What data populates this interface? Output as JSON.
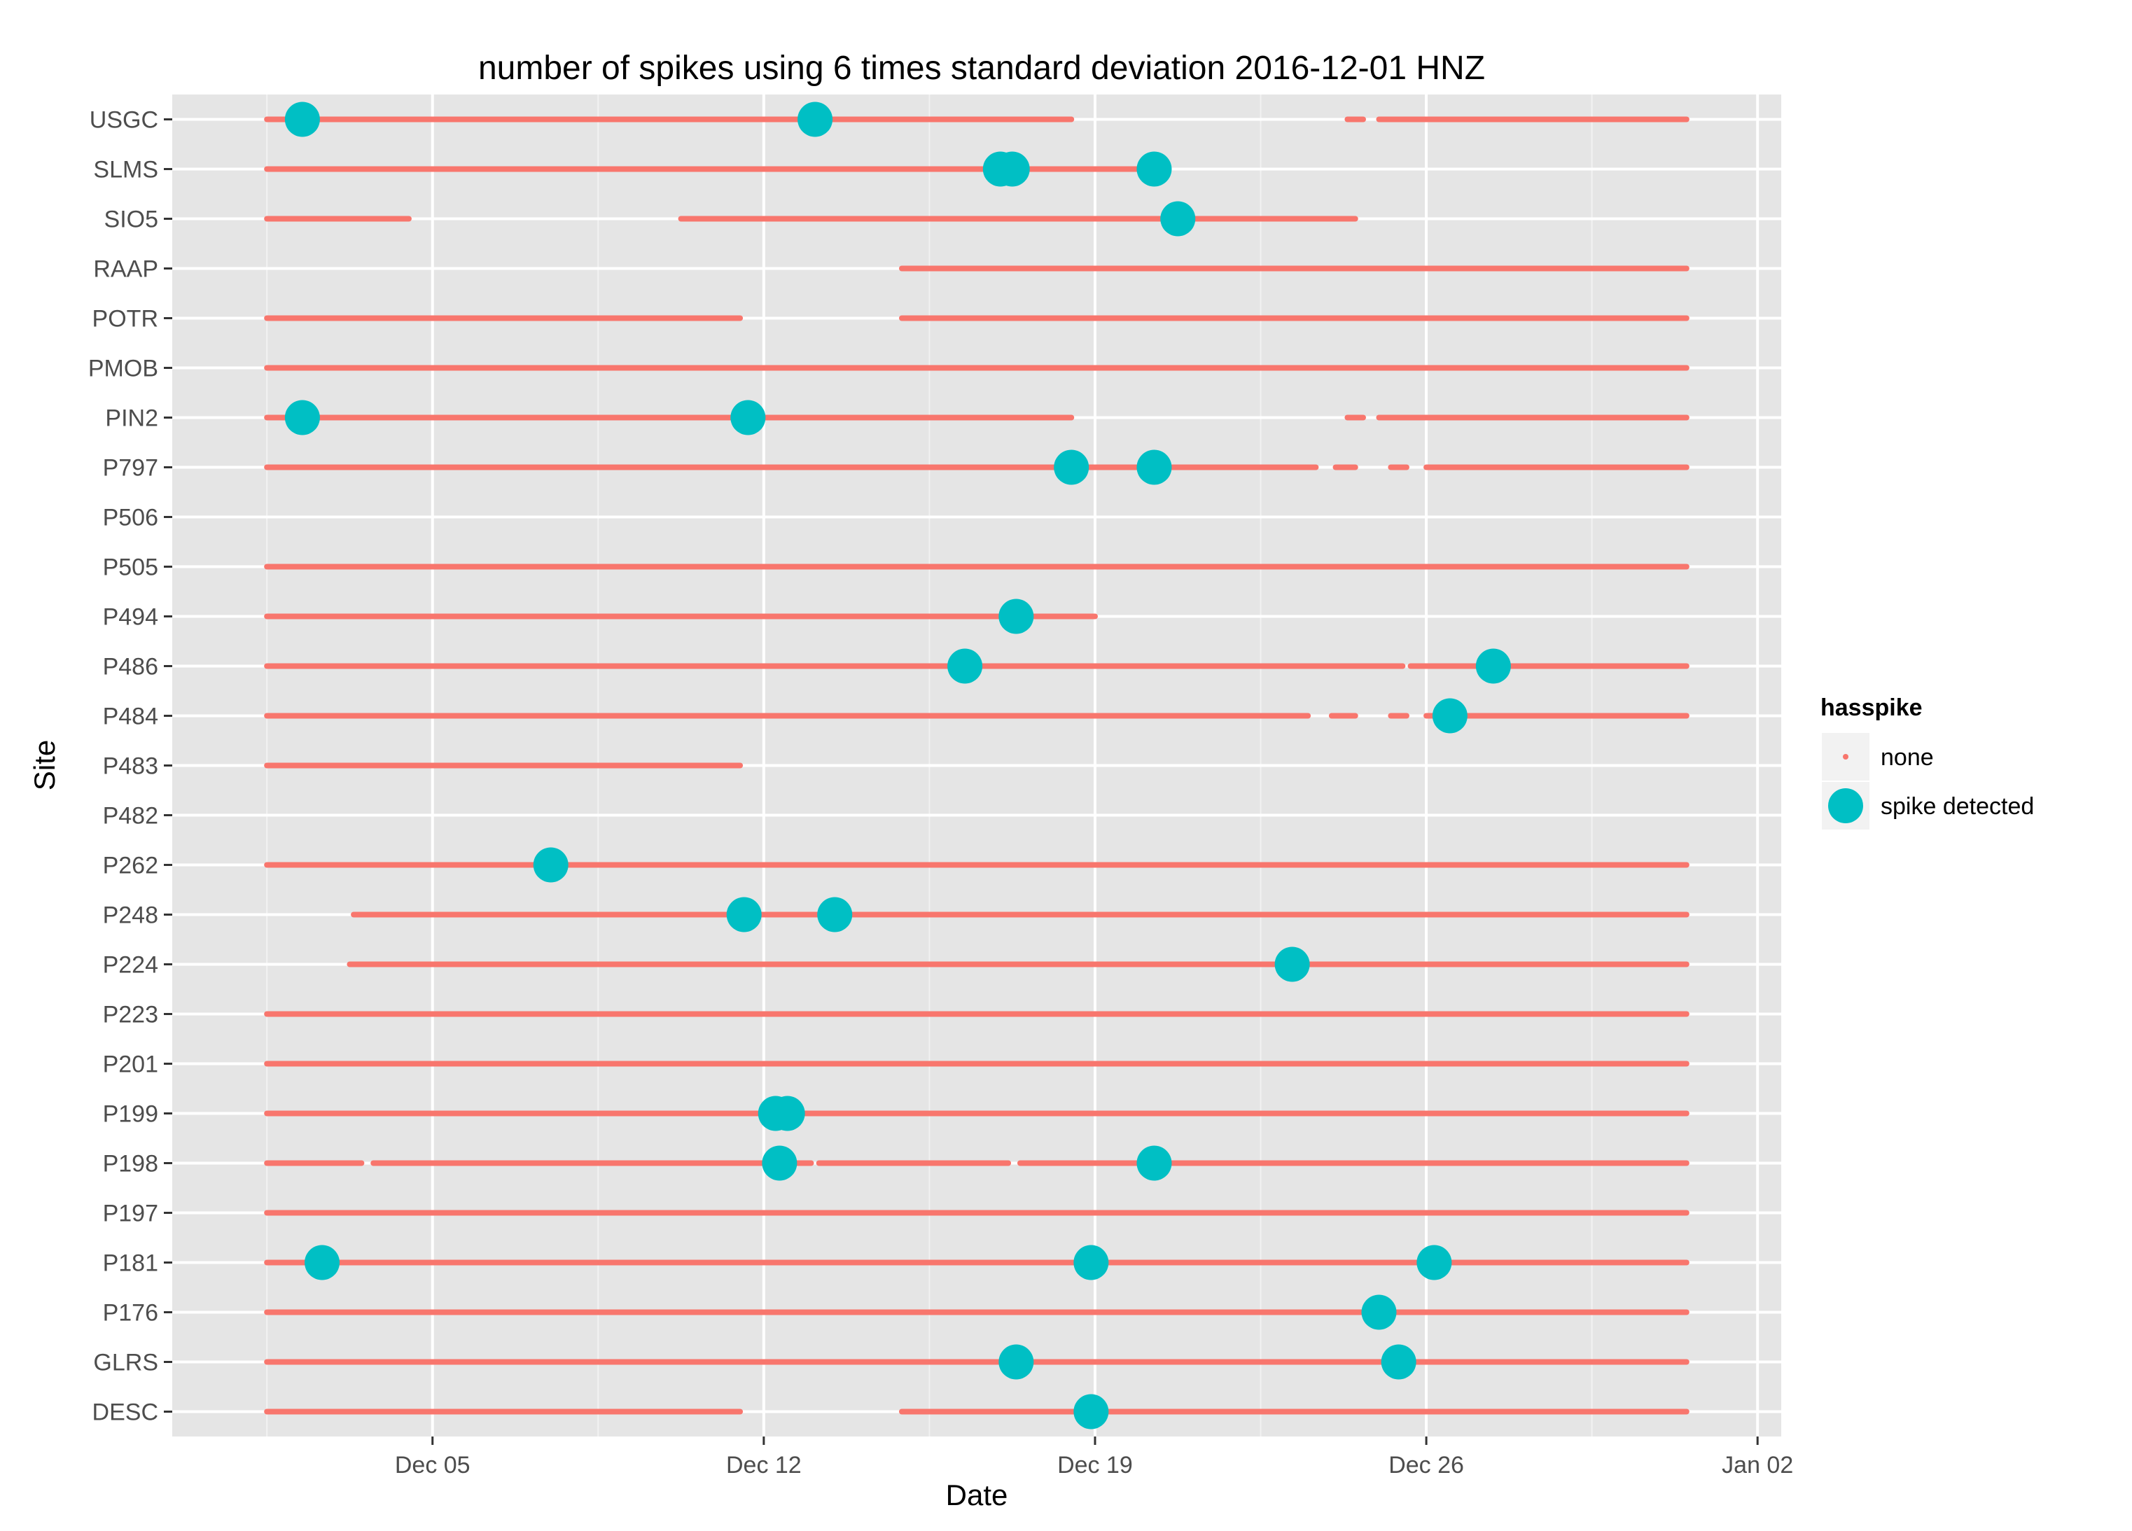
{
  "chart_data": {
    "type": "scatter",
    "title": "number of spikes using  6 times standard deviation 2016-12-01 HNZ",
    "xlabel": "Date",
    "ylabel": "Site",
    "xlim": [
      "2016-11-29T12:00",
      "2017-01-02T12:00"
    ],
    "x_ticks": [
      {
        "date": "2016-12-05",
        "label": "Dec 05"
      },
      {
        "date": "2016-12-12",
        "label": "Dec 12"
      },
      {
        "date": "2016-12-19",
        "label": "Dec 19"
      },
      {
        "date": "2016-12-26",
        "label": "Dec 26"
      },
      {
        "date": "2017-01-02",
        "label": "Jan 02"
      }
    ],
    "sites": [
      "USGC",
      "SLMS",
      "SIO5",
      "RAAP",
      "POTR",
      "PMOB",
      "PIN2",
      "P797",
      "P506",
      "P505",
      "P494",
      "P486",
      "P484",
      "P483",
      "P482",
      "P262",
      "P248",
      "P224",
      "P223",
      "P201",
      "P199",
      "P198",
      "P197",
      "P181",
      "P176",
      "GLRS",
      "DESC"
    ],
    "legend": {
      "title": "hasspike",
      "position": "right",
      "items": [
        {
          "label": "none",
          "color": "#F8766D",
          "shape": "small-dot"
        },
        {
          "label": "spike detected",
          "color": "#00BFC4",
          "shape": "large-dot"
        }
      ]
    },
    "colors": {
      "none": "#F8766D",
      "spike": "#00BFC4",
      "panel": "#E5E5E5",
      "grid": "#FFFFFF"
    },
    "grid": true,
    "coverage": [
      {
        "site": "USGC",
        "intervals": [
          [
            "2016-12-01T12:00",
            "2016-12-18T12:00"
          ],
          [
            "2016-12-24T08:00",
            "2016-12-24T16:00"
          ],
          [
            "2016-12-25T00:00",
            "2016-12-31T12:00"
          ]
        ]
      },
      {
        "site": "SLMS",
        "intervals": [
          [
            "2016-12-01T12:00",
            "2016-12-20T12:00"
          ]
        ]
      },
      {
        "site": "SIO5",
        "intervals": [
          [
            "2016-12-01T12:00",
            "2016-12-04T12:00"
          ],
          [
            "2016-12-10T06:00",
            "2016-12-24T12:00"
          ]
        ]
      },
      {
        "site": "RAAP",
        "intervals": [
          [
            "2016-12-14T22:00",
            "2016-12-31T12:00"
          ]
        ]
      },
      {
        "site": "POTR",
        "intervals": [
          [
            "2016-12-01T12:00",
            "2016-12-11T12:00"
          ],
          [
            "2016-12-14T22:00",
            "2016-12-31T12:00"
          ]
        ]
      },
      {
        "site": "PMOB",
        "intervals": [
          [
            "2016-12-01T12:00",
            "2016-12-31T12:00"
          ]
        ]
      },
      {
        "site": "PIN2",
        "intervals": [
          [
            "2016-12-01T12:00",
            "2016-12-18T12:00"
          ],
          [
            "2016-12-24T08:00",
            "2016-12-24T16:00"
          ],
          [
            "2016-12-25T00:00",
            "2016-12-31T12:00"
          ]
        ]
      },
      {
        "site": "P797",
        "intervals": [
          [
            "2016-12-01T12:00",
            "2016-12-23T16:00"
          ],
          [
            "2016-12-24T02:00",
            "2016-12-24T12:00"
          ],
          [
            "2016-12-25T06:00",
            "2016-12-25T14:00"
          ],
          [
            "2016-12-26T00:00",
            "2016-12-31T12:00"
          ]
        ]
      },
      {
        "site": "P506",
        "intervals": []
      },
      {
        "site": "P505",
        "intervals": [
          [
            "2016-12-01T12:00",
            "2016-12-31T12:00"
          ]
        ]
      },
      {
        "site": "P494",
        "intervals": [
          [
            "2016-12-01T12:00",
            "2016-12-19T00:00"
          ]
        ]
      },
      {
        "site": "P486",
        "intervals": [
          [
            "2016-12-01T12:00",
            "2016-12-25T12:00"
          ],
          [
            "2016-12-25T16:00",
            "2016-12-31T12:00"
          ]
        ]
      },
      {
        "site": "P484",
        "intervals": [
          [
            "2016-12-01T12:00",
            "2016-12-23T12:00"
          ],
          [
            "2016-12-24T00:00",
            "2016-12-24T12:00"
          ],
          [
            "2016-12-25T06:00",
            "2016-12-25T14:00"
          ],
          [
            "2016-12-26T00:00",
            "2016-12-31T12:00"
          ]
        ]
      },
      {
        "site": "P483",
        "intervals": [
          [
            "2016-12-01T12:00",
            "2016-12-11T12:00"
          ]
        ]
      },
      {
        "site": "P482",
        "intervals": []
      },
      {
        "site": "P262",
        "intervals": [
          [
            "2016-12-01T12:00",
            "2016-12-31T12:00"
          ]
        ]
      },
      {
        "site": "P248",
        "intervals": [
          [
            "2016-12-03T08:00",
            "2016-12-31T12:00"
          ]
        ]
      },
      {
        "site": "P224",
        "intervals": [
          [
            "2016-12-03T06:00",
            "2016-12-31T12:00"
          ]
        ]
      },
      {
        "site": "P223",
        "intervals": [
          [
            "2016-12-01T12:00",
            "2016-12-31T12:00"
          ]
        ]
      },
      {
        "site": "P201",
        "intervals": [
          [
            "2016-12-01T12:00",
            "2016-12-31T12:00"
          ]
        ]
      },
      {
        "site": "P199",
        "intervals": [
          [
            "2016-12-01T12:00",
            "2016-12-31T12:00"
          ]
        ]
      },
      {
        "site": "P198",
        "intervals": [
          [
            "2016-12-01T12:00",
            "2016-12-03T12:00"
          ],
          [
            "2016-12-03T18:00",
            "2016-12-13T00:00"
          ],
          [
            "2016-12-13T04:00",
            "2016-12-17T04:00"
          ],
          [
            "2016-12-17T10:00",
            "2016-12-31T12:00"
          ]
        ]
      },
      {
        "site": "P197",
        "intervals": [
          [
            "2016-12-01T12:00",
            "2016-12-31T12:00"
          ]
        ]
      },
      {
        "site": "P181",
        "intervals": [
          [
            "2016-12-01T12:00",
            "2016-12-31T12:00"
          ]
        ]
      },
      {
        "site": "P176",
        "intervals": [
          [
            "2016-12-01T12:00",
            "2016-12-31T12:00"
          ]
        ]
      },
      {
        "site": "GLRS",
        "intervals": [
          [
            "2016-12-01T12:00",
            "2016-12-25T12:00"
          ],
          [
            "2016-12-25T16:00",
            "2016-12-31T12:00"
          ]
        ]
      },
      {
        "site": "DESC",
        "intervals": [
          [
            "2016-12-01T12:00",
            "2016-12-11T12:00"
          ],
          [
            "2016-12-14T22:00",
            "2016-12-31T12:00"
          ]
        ]
      }
    ],
    "spikes": [
      {
        "site": "USGC",
        "date": "2016-12-02T06:00"
      },
      {
        "site": "USGC",
        "date": "2016-12-13T02:00"
      },
      {
        "site": "SLMS",
        "date": "2016-12-17T00:00"
      },
      {
        "site": "SLMS",
        "date": "2016-12-17T06:00"
      },
      {
        "site": "SLMS",
        "date": "2016-12-20T06:00"
      },
      {
        "site": "SIO5",
        "date": "2016-12-20T18:00"
      },
      {
        "site": "PIN2",
        "date": "2016-12-02T06:00"
      },
      {
        "site": "PIN2",
        "date": "2016-12-11T16:00"
      },
      {
        "site": "P797",
        "date": "2016-12-18T12:00"
      },
      {
        "site": "P797",
        "date": "2016-12-20T06:00"
      },
      {
        "site": "P494",
        "date": "2016-12-17T08:00"
      },
      {
        "site": "P486",
        "date": "2016-12-16T06:00"
      },
      {
        "site": "P486",
        "date": "2016-12-27T10:00"
      },
      {
        "site": "P484",
        "date": "2016-12-26T12:00"
      },
      {
        "site": "P262",
        "date": "2016-12-07T12:00"
      },
      {
        "site": "P248",
        "date": "2016-12-11T14:00"
      },
      {
        "site": "P248",
        "date": "2016-12-13T12:00"
      },
      {
        "site": "P224",
        "date": "2016-12-23T04:00"
      },
      {
        "site": "P199",
        "date": "2016-12-12T06:00"
      },
      {
        "site": "P199",
        "date": "2016-12-12T12:00"
      },
      {
        "site": "P198",
        "date": "2016-12-12T08:00"
      },
      {
        "site": "P198",
        "date": "2016-12-20T06:00"
      },
      {
        "site": "P181",
        "date": "2016-12-02T16:00"
      },
      {
        "site": "P181",
        "date": "2016-12-18T22:00"
      },
      {
        "site": "P181",
        "date": "2016-12-26T04:00"
      },
      {
        "site": "P176",
        "date": "2016-12-25T00:00"
      },
      {
        "site": "GLRS",
        "date": "2016-12-17T08:00"
      },
      {
        "site": "GLRS",
        "date": "2016-12-25T10:00"
      },
      {
        "site": "DESC",
        "date": "2016-12-18T22:00"
      }
    ]
  }
}
